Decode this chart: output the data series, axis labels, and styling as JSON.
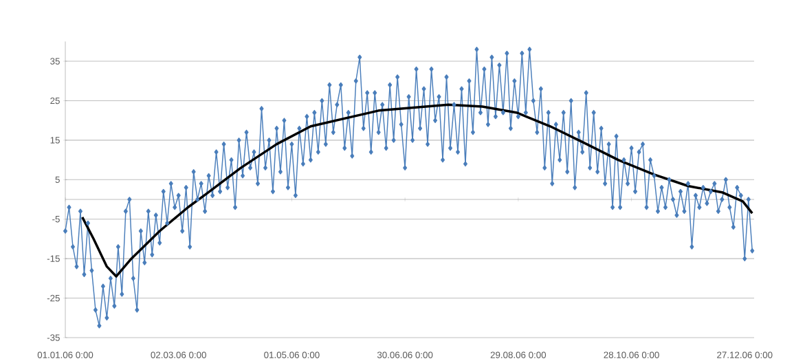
{
  "chart_data": {
    "type": "line",
    "xlim": [
      "2006-01-01",
      "2007-01-01"
    ],
    "xticks": [
      {
        "value": "2006-01-01",
        "label": "01.01.06 0:00"
      },
      {
        "value": "2006-03-02",
        "label": "02.03.06 0:00"
      },
      {
        "value": "2006-05-01",
        "label": "01.05.06 0:00"
      },
      {
        "value": "2006-06-30",
        "label": "30.06.06 0:00"
      },
      {
        "value": "2006-08-29",
        "label": "29.08.06 0:00"
      },
      {
        "value": "2006-10-28",
        "label": "28.10.06 0:00"
      },
      {
        "value": "2006-12-27",
        "label": "27.12.06 0:00"
      }
    ],
    "ylim": [
      -35,
      40
    ],
    "yticks": [
      -35,
      -25,
      -15,
      -5,
      5,
      15,
      25,
      35
    ],
    "grid": "y",
    "marker": "diamond",
    "series": [
      {
        "color": "#4a7ebb",
        "x": [
          "2006-01-01",
          "2006-01-03",
          "2006-01-05",
          "2006-01-07",
          "2006-01-09",
          "2006-01-11",
          "2006-01-13",
          "2006-01-15",
          "2006-01-17",
          "2006-01-19",
          "2006-01-21",
          "2006-01-23",
          "2006-01-25",
          "2006-01-27",
          "2006-01-29",
          "2006-01-31",
          "2006-02-02",
          "2006-02-04",
          "2006-02-06",
          "2006-02-08",
          "2006-02-10",
          "2006-02-12",
          "2006-02-14",
          "2006-02-16",
          "2006-02-18",
          "2006-02-20",
          "2006-02-22",
          "2006-02-24",
          "2006-02-26",
          "2006-02-28",
          "2006-03-02",
          "2006-03-04",
          "2006-03-06",
          "2006-03-08",
          "2006-03-10",
          "2006-03-12",
          "2006-03-14",
          "2006-03-16",
          "2006-03-18",
          "2006-03-20",
          "2006-03-22",
          "2006-03-24",
          "2006-03-26",
          "2006-03-28",
          "2006-03-30",
          "2006-04-01",
          "2006-04-03",
          "2006-04-05",
          "2006-04-07",
          "2006-04-09",
          "2006-04-11",
          "2006-04-13",
          "2006-04-15",
          "2006-04-17",
          "2006-04-19",
          "2006-04-21",
          "2006-04-23",
          "2006-04-25",
          "2006-04-27",
          "2006-04-29",
          "2006-05-01",
          "2006-05-03",
          "2006-05-05",
          "2006-05-07",
          "2006-05-09",
          "2006-05-11",
          "2006-05-13",
          "2006-05-15",
          "2006-05-17",
          "2006-05-19",
          "2006-05-21",
          "2006-05-23",
          "2006-05-25",
          "2006-05-27",
          "2006-05-29",
          "2006-05-31",
          "2006-06-02",
          "2006-06-04",
          "2006-06-06",
          "2006-06-08",
          "2006-06-10",
          "2006-06-12",
          "2006-06-14",
          "2006-06-16",
          "2006-06-18",
          "2006-06-20",
          "2006-06-22",
          "2006-06-24",
          "2006-06-26",
          "2006-06-28",
          "2006-06-30",
          "2006-07-02",
          "2006-07-04",
          "2006-07-06",
          "2006-07-08",
          "2006-07-10",
          "2006-07-12",
          "2006-07-14",
          "2006-07-16",
          "2006-07-18",
          "2006-07-20",
          "2006-07-22",
          "2006-07-24",
          "2006-07-26",
          "2006-07-28",
          "2006-07-30",
          "2006-08-01",
          "2006-08-03",
          "2006-08-05",
          "2006-08-07",
          "2006-08-09",
          "2006-08-11",
          "2006-08-13",
          "2006-08-15",
          "2006-08-17",
          "2006-08-19",
          "2006-08-21",
          "2006-08-23",
          "2006-08-25",
          "2006-08-27",
          "2006-08-29",
          "2006-08-31",
          "2006-09-02",
          "2006-09-04",
          "2006-09-06",
          "2006-09-08",
          "2006-09-10",
          "2006-09-12",
          "2006-09-14",
          "2006-09-16",
          "2006-09-18",
          "2006-09-20",
          "2006-09-22",
          "2006-09-24",
          "2006-09-26",
          "2006-09-28",
          "2006-09-30",
          "2006-10-02",
          "2006-10-04",
          "2006-10-06",
          "2006-10-08",
          "2006-10-10",
          "2006-10-12",
          "2006-10-14",
          "2006-10-16",
          "2006-10-18",
          "2006-10-20",
          "2006-10-22",
          "2006-10-24",
          "2006-10-26",
          "2006-10-28",
          "2006-10-30",
          "2006-11-01",
          "2006-11-03",
          "2006-11-05",
          "2006-11-07",
          "2006-11-09",
          "2006-11-11",
          "2006-11-13",
          "2006-11-15",
          "2006-11-17",
          "2006-11-19",
          "2006-11-21",
          "2006-11-23",
          "2006-11-25",
          "2006-11-27",
          "2006-11-29",
          "2006-12-01",
          "2006-12-03",
          "2006-12-05",
          "2006-12-07",
          "2006-12-09",
          "2006-12-11",
          "2006-12-13",
          "2006-12-15",
          "2006-12-17",
          "2006-12-19",
          "2006-12-21",
          "2006-12-23",
          "2006-12-25",
          "2006-12-27",
          "2006-12-29",
          "2006-12-31"
        ],
        "values": [
          -8,
          -2,
          -12,
          -17,
          -3,
          -19,
          -6,
          -18,
          -28,
          -32,
          -22,
          -30,
          -20,
          -27,
          -12,
          -24,
          -3,
          0,
          -20,
          -28,
          -8,
          -16,
          -3,
          -14,
          -4,
          -11,
          2,
          -6,
          4,
          -2,
          1,
          -8,
          3,
          -12,
          7,
          0,
          4,
          -3,
          6,
          1,
          12,
          2,
          14,
          3,
          10,
          -2,
          15,
          6,
          17,
          8,
          12,
          4,
          23,
          8,
          15,
          2,
          18,
          7,
          20,
          3,
          14,
          1,
          18,
          9,
          21,
          10,
          22,
          12,
          25,
          14,
          29,
          17,
          24,
          29,
          13,
          22,
          11,
          30,
          36,
          18,
          27,
          12,
          27,
          17,
          24,
          13,
          29,
          15,
          31,
          19,
          8,
          26,
          15,
          33,
          18,
          28,
          14,
          33,
          20,
          26,
          10,
          31,
          13,
          24,
          12,
          28,
          9,
          30,
          17,
          38,
          22,
          33,
          19,
          36,
          21,
          34,
          22,
          37,
          18,
          30,
          21,
          37,
          22,
          38,
          25,
          17,
          28,
          8,
          22,
          4,
          19,
          10,
          22,
          7,
          25,
          3,
          17,
          12,
          27,
          8,
          22,
          7,
          18,
          4,
          14,
          -2,
          16,
          -2,
          10,
          4,
          13,
          2,
          12,
          14,
          -2,
          10,
          6,
          -3,
          3,
          -2,
          5,
          0,
          -4,
          2,
          -3,
          4,
          -12,
          1,
          -2,
          3,
          -1,
          2,
          4,
          -3,
          0,
          5,
          -2,
          -7,
          3,
          1,
          -15,
          0,
          -13
        ]
      },
      {
        "color": "#000000",
        "marker": "none",
        "x": [
          "2006-01-10",
          "2006-01-16",
          "2006-01-23",
          "2006-01-28",
          "2006-02-05",
          "2006-02-20",
          "2006-03-07",
          "2006-03-17",
          "2006-04-04",
          "2006-04-23",
          "2006-05-11",
          "2006-06-16",
          "2006-07-23",
          "2006-08-10",
          "2006-08-28",
          "2006-09-15",
          "2006-10-03",
          "2006-10-21",
          "2006-11-09",
          "2006-11-27",
          "2006-12-15",
          "2006-12-26",
          "2006-12-31"
        ],
        "values": [
          -4.5,
          -10,
          -17,
          -19.5,
          -15,
          -8,
          -2,
          1.5,
          8,
          14,
          18.5,
          22.5,
          24,
          23.5,
          22,
          18.5,
          14.3,
          10,
          6.3,
          3.4,
          1.8,
          -0.5,
          -3.5
        ]
      }
    ]
  }
}
